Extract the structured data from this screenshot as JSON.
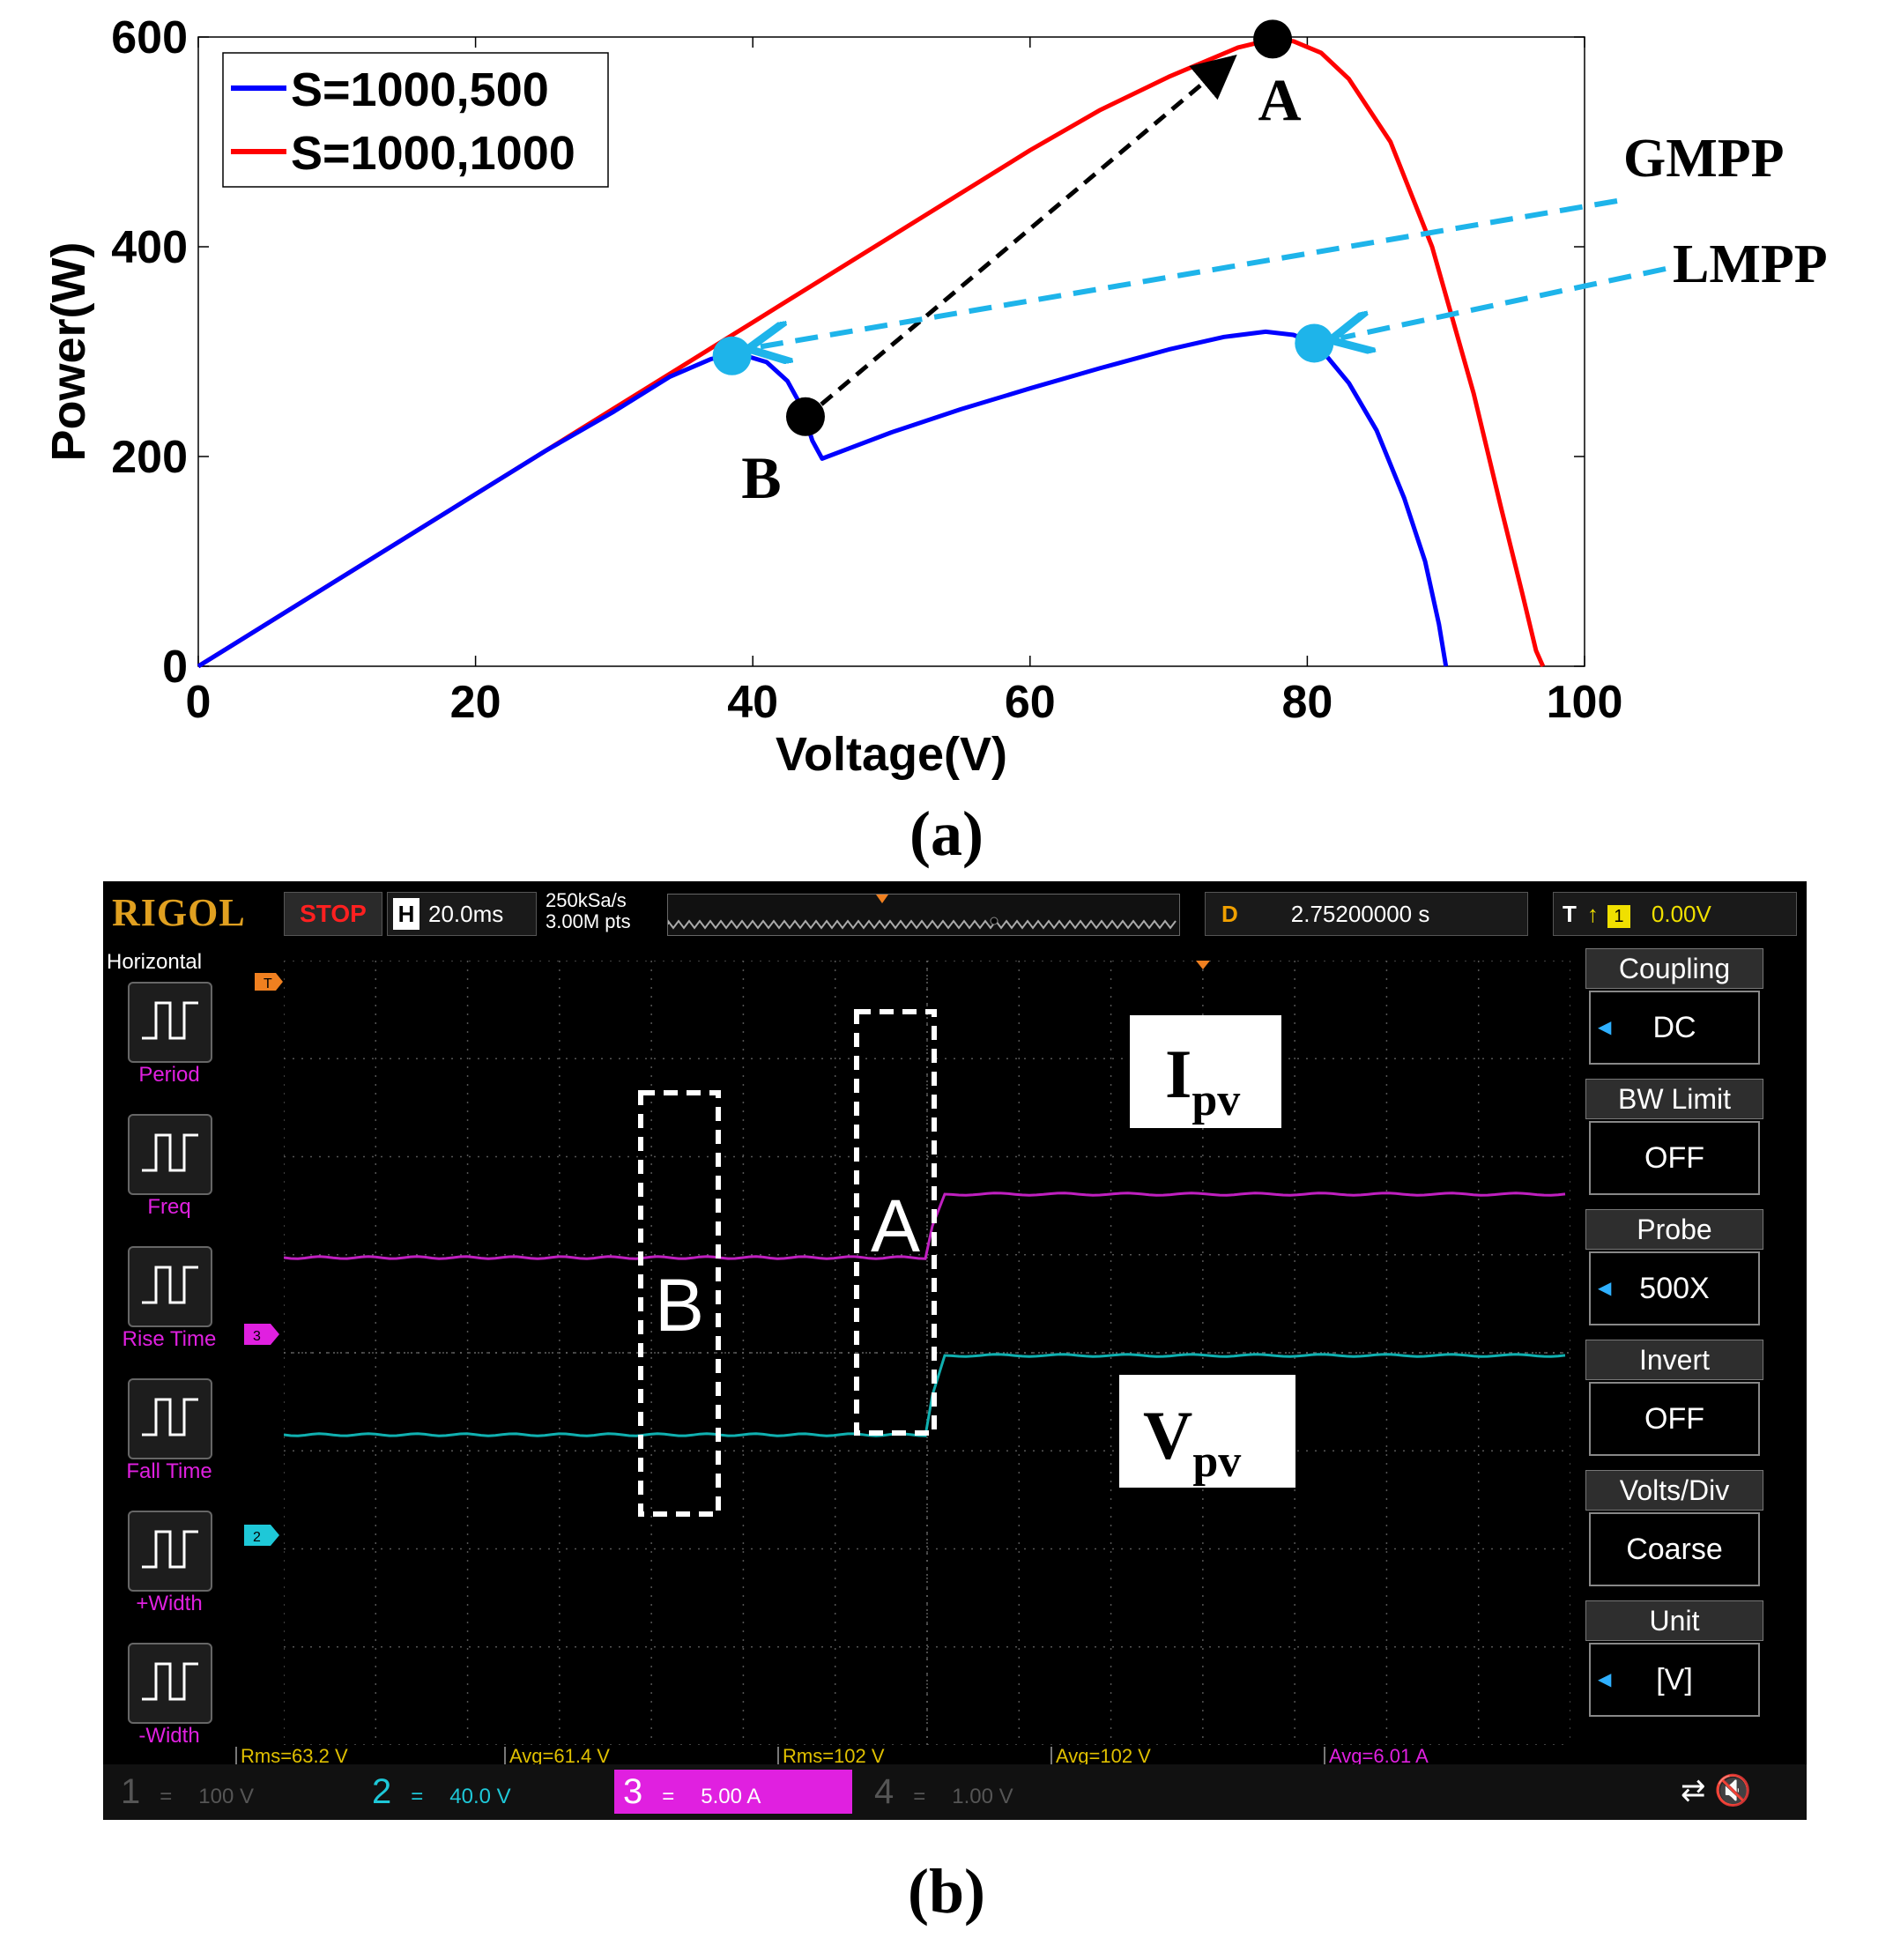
{
  "captions": {
    "a": "(a)",
    "b": "(b)"
  },
  "chart_data": {
    "type": "line",
    "xlabel": "Voltage(V)",
    "ylabel": "Power(W)",
    "xlim": [
      0,
      100
    ],
    "ylim": [
      0,
      600
    ],
    "xticks": [
      "0",
      "20",
      "40",
      "60",
      "80",
      "100"
    ],
    "yticks": [
      "0",
      "200",
      "400",
      "600"
    ],
    "grid": false,
    "legend_position": "top-left",
    "series": [
      {
        "name": "S=1000,500",
        "color": "#0000ff",
        "x": [
          0,
          10,
          20,
          25,
          30,
          34,
          37,
          39,
          41,
          42.5,
          43.5,
          44.3,
          45,
          50,
          55,
          60,
          65,
          70,
          74,
          77,
          79,
          80.5,
          81.5,
          83,
          85,
          87,
          88.5,
          89.5,
          90
        ],
        "y": [
          0,
          82,
          164,
          205,
          243,
          276,
          293,
          298,
          290,
          272,
          248,
          215,
          198,
          223,
          245,
          265,
          284,
          302,
          314,
          319,
          316,
          308,
          294,
          270,
          225,
          160,
          100,
          40,
          0
        ]
      },
      {
        "name": "S=1000,1000",
        "color": "#ff0000",
        "x": [
          0,
          10,
          20,
          25,
          30,
          40,
          50,
          60,
          65,
          70,
          75,
          77.5,
          79,
          81,
          83,
          86,
          89,
          92,
          94,
          95.5,
          96.5,
          97
        ],
        "y": [
          0,
          82,
          164,
          205,
          246,
          328,
          410,
          492,
          530,
          562,
          590,
          598,
          596,
          585,
          560,
          500,
          400,
          260,
          150,
          70,
          15,
          0
        ]
      }
    ],
    "markers": [
      {
        "label": "A",
        "x": 77.5,
        "y": 598,
        "color": "#000000"
      },
      {
        "label": "B",
        "x": 43.8,
        "y": 238,
        "color": "#000000"
      },
      {
        "label": "",
        "x": 38.5,
        "y": 296,
        "color": "#1eb4ea"
      },
      {
        "label": "",
        "x": 80.5,
        "y": 308,
        "color": "#1eb4ea"
      }
    ],
    "annotations": [
      "GMPP",
      "LMPP"
    ]
  },
  "scope": {
    "brand": "RIGOL",
    "status": "STOP",
    "h_label": "H",
    "timebase": "20.0ms",
    "sample_rate": "250kSa/s",
    "points": "3.00M pts",
    "d_label": "D",
    "delay": "2.75200000 s",
    "trig_label": "T",
    "trig_channel": "1",
    "trig_level": "0.00V",
    "left_title": "Horizontal",
    "left_buttons": [
      "Period",
      "Freq",
      "Rise Time",
      "Fall Time",
      "+Width",
      "-Width"
    ],
    "right_menu": [
      {
        "label": "Coupling",
        "value": "DC"
      },
      {
        "label": "BW Limit",
        "value": "OFF"
      },
      {
        "label": "Probe",
        "value": "500X"
      },
      {
        "label": "Invert",
        "value": "OFF"
      },
      {
        "label": "Volts/Div",
        "value": "Coarse"
      },
      {
        "label": "Unit",
        "value": "[V]"
      }
    ],
    "trace_labels": {
      "ipv": "I",
      "ipv_sub": "pv",
      "vpv": "V",
      "vpv_sub": "pv"
    },
    "box_labels": {
      "a": "A",
      "b": "B"
    },
    "markers": {
      "t": "T",
      "ch3": "3",
      "ch2": "2"
    },
    "measurements": [
      {
        "text": "Rms=63.2 V",
        "color": "#e0c000"
      },
      {
        "text": "Avg=61.4 V",
        "color": "#e0c000"
      },
      {
        "text": "Rms=102 V",
        "color": "#e0c000"
      },
      {
        "text": "Avg=102 V",
        "color": "#e0c000"
      },
      {
        "text": "Avg=6.01 A",
        "color": "#e020e0"
      }
    ],
    "channels": [
      {
        "num": "1",
        "eq": "=",
        "scale": "100 V"
      },
      {
        "num": "2",
        "eq": "=",
        "scale": "40.0 V"
      },
      {
        "num": "3",
        "eq": "=",
        "scale": "5.00 A"
      },
      {
        "num": "4",
        "eq": "=",
        "scale": "1.00 V"
      }
    ],
    "colors": {
      "ch1": "#e0c000",
      "ch2": "#1ec8d8",
      "ch3": "#e020e0",
      "ch4": "#7070ff",
      "ipv_trace": "#c020c0",
      "vpv_trace": "#10b0b0"
    }
  }
}
